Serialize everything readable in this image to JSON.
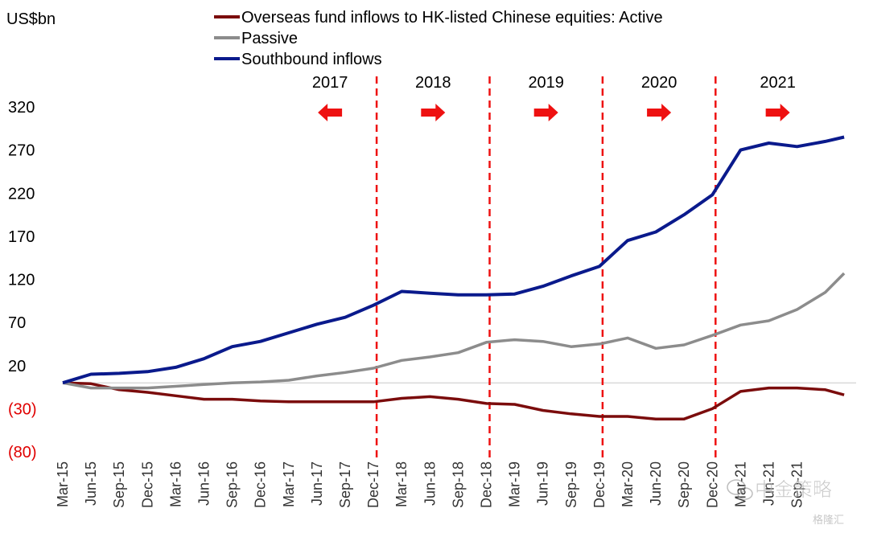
{
  "chart_data": {
    "type": "line",
    "unit_label": "US$bn",
    "ylim": [
      -80,
      320
    ],
    "y_ticks": [
      {
        "value": 320,
        "label": "320",
        "color": "#000000"
      },
      {
        "value": 270,
        "label": "270",
        "color": "#000000"
      },
      {
        "value": 220,
        "label": "220",
        "color": "#000000"
      },
      {
        "value": 170,
        "label": "170",
        "color": "#000000"
      },
      {
        "value": 120,
        "label": "120",
        "color": "#000000"
      },
      {
        "value": 70,
        "label": "70",
        "color": "#000000"
      },
      {
        "value": 20,
        "label": "20",
        "color": "#000000"
      },
      {
        "value": -30,
        "label": "(30)",
        "color": "#e00000"
      },
      {
        "value": -80,
        "label": "(80)",
        "color": "#e00000"
      }
    ],
    "x_ticks": [
      "Mar-15",
      "Jun-15",
      "Sep-15",
      "Dec-15",
      "Mar-16",
      "Jun-16",
      "Sep-16",
      "Dec-16",
      "Mar-17",
      "Jun-17",
      "Sep-17",
      "Dec-17",
      "Mar-18",
      "Jun-18",
      "Sep-18",
      "Dec-18",
      "Mar-19",
      "Jun-19",
      "Sep-19",
      "Dec-19",
      "Mar-20",
      "Jun-20",
      "Sep-20",
      "Dec-20",
      "Mar-21",
      "Jun-21",
      "Sep-21"
    ],
    "grid": false,
    "zero_line": true,
    "legend_position": "top",
    "year_dividers": [
      "Dec-17",
      "Dec-18",
      "Dec-19",
      "Dec-20"
    ],
    "year_labels": [
      {
        "label": "2017",
        "arrow": "left"
      },
      {
        "label": "2018",
        "arrow": "right"
      },
      {
        "label": "2019",
        "arrow": "right"
      },
      {
        "label": "2020",
        "arrow": "right"
      },
      {
        "label": "2021",
        "arrow": "right"
      }
    ],
    "series": [
      {
        "name": "Overseas fund inflows to HK-listed Chinese equities: Active",
        "color": "#7b0c0c",
        "points": [
          [
            "Mar-15",
            0
          ],
          [
            "Jun-15",
            -1
          ],
          [
            "Sep-15",
            -8
          ],
          [
            "Dec-15",
            -11
          ],
          [
            "Mar-16",
            -15
          ],
          [
            "Jun-16",
            -19
          ],
          [
            "Sep-16",
            -19
          ],
          [
            "Dec-16",
            -21
          ],
          [
            "Mar-17",
            -22
          ],
          [
            "Jun-17",
            -22
          ],
          [
            "Sep-17",
            -22
          ],
          [
            "Dec-17",
            -22
          ],
          [
            "Mar-18",
            -18
          ],
          [
            "Jun-18",
            -16
          ],
          [
            "Sep-18",
            -19
          ],
          [
            "Dec-18",
            -24
          ],
          [
            "Mar-19",
            -25
          ],
          [
            "Jun-19",
            -32
          ],
          [
            "Sep-19",
            -36
          ],
          [
            "Dec-19",
            -39
          ],
          [
            "Mar-20",
            -39
          ],
          [
            "Jun-20",
            -42
          ],
          [
            "Sep-20",
            -42
          ],
          [
            "Dec-20",
            -30
          ],
          [
            "Mar-21",
            -10
          ],
          [
            "Jun-21",
            -6
          ],
          [
            "Sep-21",
            -6
          ],
          [
            "Dec-21",
            -8
          ],
          [
            "Feb-22",
            -14
          ]
        ]
      },
      {
        "name": "Passive",
        "color": "#8c8c8c",
        "points": [
          [
            "Mar-15",
            0
          ],
          [
            "Jun-15",
            -6
          ],
          [
            "Sep-15",
            -6
          ],
          [
            "Dec-15",
            -6
          ],
          [
            "Mar-16",
            -4
          ],
          [
            "Jun-16",
            -2
          ],
          [
            "Sep-16",
            0
          ],
          [
            "Dec-16",
            1
          ],
          [
            "Mar-17",
            3
          ],
          [
            "Jun-17",
            8
          ],
          [
            "Sep-17",
            12
          ],
          [
            "Dec-17",
            17
          ],
          [
            "Mar-18",
            26
          ],
          [
            "Jun-18",
            30
          ],
          [
            "Sep-18",
            35
          ],
          [
            "Dec-18",
            47
          ],
          [
            "Mar-19",
            50
          ],
          [
            "Jun-19",
            48
          ],
          [
            "Sep-19",
            42
          ],
          [
            "Dec-19",
            45
          ],
          [
            "Mar-20",
            52
          ],
          [
            "Jun-20",
            40
          ],
          [
            "Sep-20",
            44
          ],
          [
            "Dec-20",
            55
          ],
          [
            "Mar-21",
            67
          ],
          [
            "Jun-21",
            72
          ],
          [
            "Sep-21",
            85
          ],
          [
            "Dec-21",
            105
          ],
          [
            "Feb-22",
            127
          ]
        ]
      },
      {
        "name": "Southbound inflows",
        "color": "#0a1a8c",
        "points": [
          [
            "Mar-15",
            0
          ],
          [
            "Jun-15",
            10
          ],
          [
            "Sep-15",
            11
          ],
          [
            "Dec-15",
            13
          ],
          [
            "Mar-16",
            18
          ],
          [
            "Jun-16",
            28
          ],
          [
            "Sep-16",
            42
          ],
          [
            "Dec-16",
            48
          ],
          [
            "Mar-17",
            58
          ],
          [
            "Jun-17",
            68
          ],
          [
            "Sep-17",
            76
          ],
          [
            "Dec-17",
            90
          ],
          [
            "Mar-18",
            106
          ],
          [
            "Jun-18",
            104
          ],
          [
            "Sep-18",
            102
          ],
          [
            "Dec-18",
            102
          ],
          [
            "Mar-19",
            103
          ],
          [
            "Jun-19",
            112
          ],
          [
            "Sep-19",
            124
          ],
          [
            "Dec-19",
            135
          ],
          [
            "Mar-20",
            165
          ],
          [
            "Jun-20",
            175
          ],
          [
            "Sep-20",
            195
          ],
          [
            "Dec-20",
            218
          ],
          [
            "Mar-21",
            270
          ],
          [
            "Jun-21",
            278
          ],
          [
            "Sep-21",
            274
          ],
          [
            "Dec-21",
            280
          ],
          [
            "Feb-22",
            285
          ]
        ]
      }
    ]
  },
  "watermark": {
    "text": "中金策略",
    "icon": "wechat-logo-icon",
    "subtext": "格隆汇"
  }
}
